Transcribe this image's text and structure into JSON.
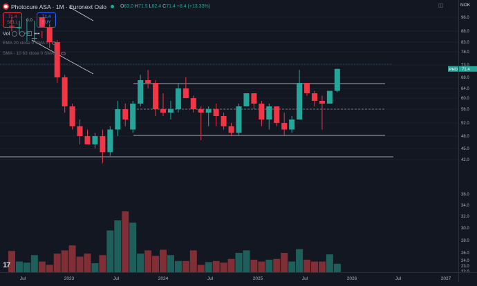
{
  "legend": {
    "symbol": "Photocure ASA · 1M · Euronext Oslo",
    "ohlc": [
      {
        "k": "O",
        "v": "63.0"
      },
      {
        "k": "H",
        "v": "71.5"
      },
      {
        "k": "L",
        "v": "62.4"
      },
      {
        "k": "C",
        "v": "71.4"
      },
      {
        "k": "",
        "v": "+8.4 (+13.33%)"
      }
    ],
    "sell_price": "71.4",
    "sell_label": "SELL",
    "spread": "0.0",
    "buy_price": "71.4",
    "buy_label": "BUY",
    "vol_label": "Vol",
    "indicators": [
      "EMA 20 close 0 SMA 5",
      "SMA - 10 63 close 0 SMA 5"
    ]
  },
  "price_axis": {
    "unit": "NOK",
    "labels": [
      "96.0",
      "88.0",
      "83.0",
      "78.0",
      "73.0",
      "68.0",
      "64.0",
      "60.0",
      "56.0",
      "52.0",
      "48.0",
      "45.0",
      "42.0",
      "38.0",
      "34.0",
      "32.0",
      "30.0",
      "28.0",
      "26.0",
      "24.0",
      "23.0",
      "22.0",
      "21.0"
    ],
    "current_symbol": "PHO",
    "current_price": "71.4"
  },
  "time_axis": {
    "labels": [
      "Jul",
      "2023",
      "Jul",
      "2024",
      "Jul",
      "2025",
      "Jul",
      "2026",
      "Jul",
      "2027"
    ]
  },
  "colors": {
    "up": "#26a69a",
    "down": "#f23645",
    "vol_up": "#1f5f5b",
    "vol_down": "#7f2f35"
  },
  "chart_data": {
    "type": "candlestick",
    "interval": "1M",
    "candles": [
      {
        "o": 101,
        "h": 104,
        "l": 96,
        "c": 99
      },
      {
        "o": 99,
        "h": 106,
        "l": 94,
        "c": 102
      },
      {
        "o": 102,
        "h": 110,
        "l": 97,
        "c": 105
      },
      {
        "o": 96,
        "h": 110,
        "l": 94,
        "c": 108
      },
      {
        "o": 96,
        "h": 108,
        "l": 88,
        "c": 90
      },
      {
        "o": 90,
        "h": 92,
        "l": 80,
        "c": 83
      },
      {
        "o": 83,
        "h": 84,
        "l": 66,
        "c": 68
      },
      {
        "o": 68,
        "h": 69,
        "l": 55,
        "c": 57
      },
      {
        "o": 57,
        "h": 58,
        "l": 50,
        "c": 51
      },
      {
        "o": 51,
        "h": 53,
        "l": 46,
        "c": 48
      },
      {
        "o": 48,
        "h": 50,
        "l": 46,
        "c": 46
      },
      {
        "o": 46,
        "h": 49,
        "l": 45,
        "c": 48
      },
      {
        "o": 48,
        "h": 50,
        "l": 41,
        "c": 44
      },
      {
        "o": 44,
        "h": 51,
        "l": 43,
        "c": 50
      },
      {
        "o": 50,
        "h": 59,
        "l": 48,
        "c": 56
      },
      {
        "o": 56,
        "h": 58,
        "l": 51,
        "c": 53
      },
      {
        "o": 50,
        "h": 59,
        "l": 49,
        "c": 58
      },
      {
        "o": 58,
        "h": 69,
        "l": 57,
        "c": 67
      },
      {
        "o": 67,
        "h": 71,
        "l": 64,
        "c": 66
      },
      {
        "o": 66,
        "h": 67,
        "l": 54,
        "c": 56
      },
      {
        "o": 56,
        "h": 62,
        "l": 54,
        "c": 55
      },
      {
        "o": 55,
        "h": 59,
        "l": 53,
        "c": 56
      },
      {
        "o": 56,
        "h": 66,
        "l": 55,
        "c": 64
      },
      {
        "o": 64,
        "h": 68,
        "l": 60,
        "c": 60
      },
      {
        "o": 60,
        "h": 61,
        "l": 55,
        "c": 56
      },
      {
        "o": 56,
        "h": 57,
        "l": 47,
        "c": 55
      },
      {
        "o": 55,
        "h": 57,
        "l": 51,
        "c": 56
      },
      {
        "o": 56,
        "h": 58,
        "l": 51,
        "c": 54
      },
      {
        "o": 54,
        "h": 55,
        "l": 50,
        "c": 51
      },
      {
        "o": 51,
        "h": 52,
        "l": 48,
        "c": 49
      },
      {
        "o": 49,
        "h": 58,
        "l": 48,
        "c": 57
      },
      {
        "o": 57,
        "h": 62,
        "l": 57,
        "c": 62
      },
      {
        "o": 62,
        "h": 62,
        "l": 56,
        "c": 58
      },
      {
        "o": 58,
        "h": 59,
        "l": 51,
        "c": 53
      },
      {
        "o": 53,
        "h": 58,
        "l": 50,
        "c": 57
      },
      {
        "o": 57,
        "h": 57,
        "l": 51,
        "c": 52
      },
      {
        "o": 52,
        "h": 55,
        "l": 48,
        "c": 50
      },
      {
        "o": 50,
        "h": 54,
        "l": 49,
        "c": 53
      },
      {
        "o": 53,
        "h": 71,
        "l": 53,
        "c": 66
      },
      {
        "o": 66,
        "h": 66,
        "l": 61,
        "c": 62
      },
      {
        "o": 62,
        "h": 63,
        "l": 57,
        "c": 59
      },
      {
        "o": 59,
        "h": 61,
        "l": 50,
        "c": 58
      },
      {
        "o": 58,
        "h": 63,
        "l": 58,
        "c": 63
      },
      {
        "o": 63,
        "h": 71.5,
        "l": 62.4,
        "c": 71.4
      }
    ],
    "volume": [
      24.3,
      22.8,
      22.6,
      23.7,
      22.8,
      22.2,
      23.9,
      24.4,
      25.2,
      23.5,
      23.9,
      22.5,
      23.7,
      27.6,
      29.3,
      30.9,
      28.9,
      23.9,
      24.4,
      23.6,
      24.5,
      23.7,
      22.9,
      22.9,
      24.4,
      22.2,
      22.7,
      22.9,
      22.6,
      23.2,
      24.0,
      24.4,
      23.1,
      22.8,
      23.1,
      23.2,
      24.0,
      22.8,
      24.6,
      23.1,
      22.8,
      22.8,
      23.8,
      22.4
    ]
  }
}
